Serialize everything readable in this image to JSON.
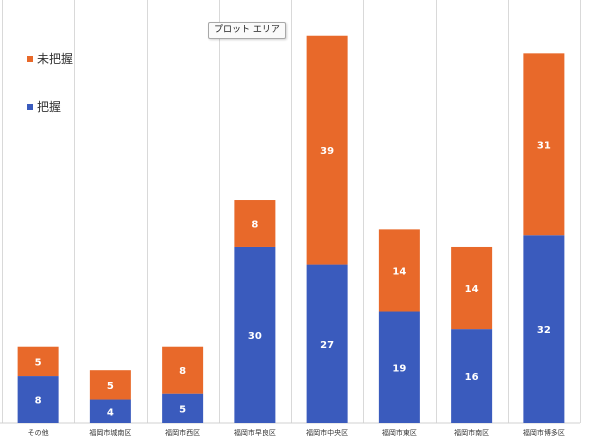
{
  "chart_data": {
    "type": "bar",
    "stacked": true,
    "categories": [
      "その他",
      "福岡市城南区",
      "福岡市西区",
      "福岡市早良区",
      "福岡市中央区",
      "福岡市東区",
      "福岡市南区",
      "福岡市博多区"
    ],
    "series": [
      {
        "name": "把握",
        "color": "#3a5bbd",
        "values": [
          8,
          4,
          5,
          30,
          27,
          19,
          16,
          32
        ]
      },
      {
        "name": "未把握",
        "color": "#e8692a",
        "values": [
          5,
          5,
          8,
          8,
          39,
          14,
          14,
          31
        ]
      }
    ],
    "ylim": [
      0,
      68
    ],
    "grid": {
      "vertical": true,
      "horizontal": false
    },
    "legend": {
      "placement": "top-left"
    },
    "data_labels": true
  },
  "tooltip": {
    "label": "プロット エリア"
  }
}
